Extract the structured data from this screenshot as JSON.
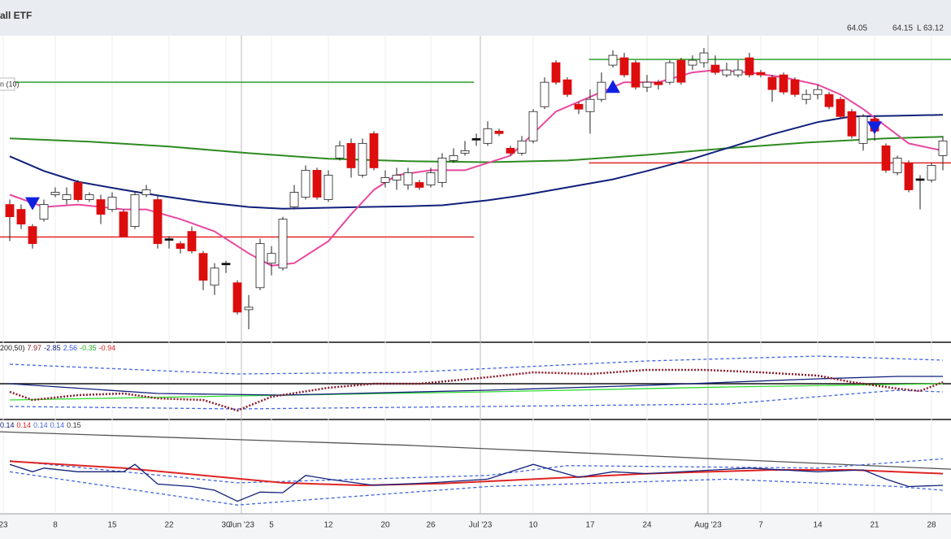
{
  "chart_data": {
    "type": "candlestick",
    "title": "all ETF",
    "quote": [
      "64.05",
      "64.15",
      "L 63.12"
    ],
    "legend_label": "n (10)",
    "ylim": [
      55,
      67.5
    ],
    "categories": [
      "23",
      null,
      null,
      null,
      "8",
      null,
      null,
      null,
      null,
      "15",
      null,
      null,
      null,
      null,
      "22",
      null,
      null,
      null,
      null,
      "30",
      "Jun '23",
      null,
      null,
      "5",
      null,
      null,
      null,
      null,
      "12",
      null,
      null,
      null,
      null,
      "20",
      null,
      null,
      null,
      "26",
      null,
      null,
      null,
      "Jul '23",
      null,
      null,
      null,
      null,
      "10",
      null,
      null,
      null,
      null,
      "17",
      null,
      null,
      null,
      null,
      "24",
      null,
      null,
      null,
      null,
      "Aug '23",
      null,
      null,
      null,
      null,
      "7",
      null,
      null,
      null,
      null,
      "14",
      null,
      null,
      null,
      null,
      "21",
      null,
      null,
      null,
      null,
      "28",
      null
    ],
    "open": [
      60.6,
      60.4,
      59.7,
      60.0,
      61.0,
      60.8,
      61.5,
      60.8,
      60.8,
      60.4,
      60.3,
      59.7,
      61.0,
      60.8,
      59.2,
      59.0,
      59.5,
      58.6,
      57.3,
      58.2,
      57.4,
      56.3,
      57.2,
      58.2,
      58.0,
      60.5,
      60.9,
      62.0,
      60.8,
      62.5,
      63.1,
      61.8,
      63.5,
      61.5,
      61.6,
      61.4,
      61.5,
      61.4,
      61.5,
      62.4,
      62.7,
      63.3,
      63.1,
      63.6,
      62.9,
      62.7,
      63.2,
      64.6,
      66.4,
      65.7,
      64.7,
      64.4,
      64.9,
      66.3,
      66.6,
      66.4,
      65.4,
      65.6,
      65.6,
      66.5,
      66.3,
      66.4,
      66.3,
      65.9,
      65.9,
      66.6,
      66.0,
      65.8,
      65.9,
      65.7,
      64.9,
      65.1,
      65.1,
      64.9,
      64.4,
      63.1,
      64.1,
      63.0,
      61.9,
      62.3,
      61.65,
      61.6,
      62.6
    ],
    "high": [
      60.8,
      60.6,
      59.8,
      60.8,
      61.3,
      61.3,
      61.6,
      61.1,
      61.0,
      61.1,
      60.4,
      61.1,
      61.4,
      61.0,
      59.3,
      59.1,
      59.7,
      58.7,
      58.2,
      58.3,
      57.5,
      56.9,
      59.2,
      58.9,
      60.1,
      61.4,
      62.2,
      62.1,
      62.0,
      63.2,
      63.3,
      63.3,
      63.6,
      62.0,
      62.1,
      62.1,
      61.6,
      62.1,
      62.7,
      62.9,
      63.2,
      63.5,
      64.0,
      63.7,
      63.0,
      63.4,
      64.5,
      65.8,
      66.5,
      65.8,
      64.8,
      65.3,
      66.0,
      66.9,
      66.8,
      66.5,
      65.9,
      65.7,
      66.5,
      66.6,
      66.7,
      67.0,
      66.7,
      66.4,
      66.5,
      66.8,
      66.1,
      65.9,
      66.0,
      65.8,
      65.3,
      65.5,
      65.2,
      65.0,
      64.5,
      64.3,
      64.2,
      63.1,
      62.6,
      62.4,
      61.8,
      62.3,
      63.4
    ],
    "low": [
      59.1,
      59.6,
      58.8,
      59.9,
      60.9,
      60.6,
      60.7,
      60.7,
      59.8,
      60.3,
      59.3,
      59.6,
      60.9,
      58.8,
      58.8,
      58.6,
      58.6,
      57.1,
      56.9,
      57.8,
      56.1,
      55.5,
      57.1,
      57.7,
      57.9,
      60.4,
      60.8,
      60.8,
      60.7,
      62.4,
      61.7,
      61.7,
      62.0,
      61.3,
      61.2,
      61.2,
      61.2,
      61.3,
      61.3,
      62.3,
      62.6,
      63.0,
      63.0,
      63.4,
      62.6,
      62.6,
      63.1,
      64.5,
      65.5,
      65.0,
      64.3,
      63.5,
      64.8,
      66.2,
      65.8,
      65.3,
      65.2,
      65.3,
      65.5,
      65.5,
      66.1,
      66.2,
      65.9,
      65.8,
      65.8,
      65.8,
      65.8,
      64.8,
      65.1,
      65.0,
      64.7,
      64.9,
      64.5,
      64.1,
      63.3,
      62.8,
      63.2,
      61.9,
      61.8,
      61.1,
      60.4,
      61.5,
      62.0
    ],
    "close": [
      60.1,
      59.8,
      59.0,
      60.6,
      61.1,
      61.0,
      60.8,
      61.0,
      60.2,
      60.9,
      59.3,
      61.0,
      61.2,
      59.0,
      59.15,
      58.8,
      58.7,
      57.5,
      58.0,
      58.15,
      56.2,
      56.4,
      59.0,
      58.6,
      60.0,
      61.1,
      62.0,
      60.9,
      61.8,
      63.0,
      62.1,
      63.1,
      62.1,
      61.7,
      61.8,
      61.9,
      61.3,
      61.9,
      62.5,
      62.6,
      62.8,
      63.25,
      63.7,
      63.5,
      62.7,
      63.2,
      64.4,
      65.6,
      65.6,
      65.1,
      64.5,
      64.9,
      65.6,
      66.7,
      65.9,
      65.4,
      65.6,
      65.5,
      66.4,
      65.6,
      66.5,
      66.8,
      66.0,
      66.1,
      66.1,
      65.9,
      65.9,
      65.3,
      65.2,
      65.1,
      65.1,
      65.3,
      64.6,
      64.2,
      63.4,
      64.2,
      63.6,
      62.0,
      62.5,
      61.2,
      61.6,
      62.2,
      63.2
    ],
    "up_color": "#ffffff",
    "down_color": "#dd0d0d",
    "doji_color": "#000000",
    "lines": [
      {
        "color": "#2e8b22",
        "x": [
          0,
          7,
          14,
          21,
          28,
          35,
          42,
          49,
          56,
          63,
          70,
          77,
          82
        ],
        "values": [
          63.3,
          63.17,
          62.97,
          62.7,
          62.47,
          62.37,
          62.33,
          62.4,
          62.63,
          62.9,
          63.13,
          63.3,
          63.37
        ]
      },
      {
        "color": "#10207a",
        "x": [
          0,
          3,
          6,
          10,
          13,
          17,
          21,
          24,
          28,
          31,
          35,
          38,
          42,
          45,
          49,
          53,
          56,
          60,
          63,
          67,
          71,
          74,
          78,
          82
        ],
        "values": [
          62.57,
          61.97,
          61.53,
          61.2,
          60.97,
          60.7,
          60.5,
          60.43,
          60.47,
          60.5,
          60.53,
          60.57,
          60.77,
          60.97,
          61.3,
          61.63,
          61.97,
          62.47,
          62.9,
          63.47,
          63.97,
          64.2,
          64.23,
          64.27
        ]
      },
      {
        "color": "#e8489e",
        "x": [
          0,
          3,
          6,
          10,
          12,
          15,
          18,
          21,
          23,
          25,
          28,
          30,
          32,
          34,
          37,
          40,
          42,
          44,
          46,
          48,
          51,
          54,
          57,
          60,
          62,
          65,
          68,
          71,
          73,
          75,
          77,
          79,
          82
        ],
        "values": [
          61.0,
          60.5,
          60.6,
          60.4,
          60.4,
          60.0,
          59.5,
          58.6,
          58.1,
          58.2,
          59.1,
          60.2,
          61.2,
          61.8,
          62.0,
          62.0,
          62.3,
          62.6,
          63.5,
          64.4,
          65.0,
          65.6,
          65.6,
          66.0,
          66.1,
          66.0,
          65.8,
          65.5,
          65.1,
          64.5,
          63.8,
          63.1,
          62.8
        ]
      }
    ],
    "levels": [
      {
        "color": "#2ea02e",
        "x": [
          -0.9,
          40.8
        ],
        "value": 65.6
      },
      {
        "color": "#e02424",
        "x": [
          -0.9,
          40.8
        ],
        "value": 59.27
      },
      {
        "color": "#2ea02e",
        "x": [
          50.9,
          83
        ],
        "value": 66.53
      },
      {
        "color": "#e02424",
        "x": [
          50.9,
          83
        ],
        "value": 62.3
      }
    ],
    "signals": [
      {
        "x": 2,
        "value": 60.63,
        "direction": "down",
        "color": "#1020e0"
      },
      {
        "x": 53,
        "value": 65.43,
        "direction": "up",
        "color": "#1020e0"
      },
      {
        "x": 76,
        "value": 63.73,
        "direction": "down",
        "color": "#1020e0"
      }
    ],
    "panels": [
      {
        "label": [
          {
            "text": "200,50)",
            "color": "#222222"
          },
          {
            "text": "7.97",
            "color": "#8b1a2a"
          },
          {
            "text": "-2.85",
            "color": "#10207a"
          },
          {
            "text": "2.56",
            "color": "#3355dd"
          },
          {
            "text": "-0.35",
            "color": "#22aa22"
          },
          {
            "text": "-0.94",
            "color": "#dd2222"
          }
        ],
        "ylim": [
          -20,
          20
        ],
        "hline": 0,
        "lines": [
          {
            "color": "#4466dd",
            "style": "dashed",
            "x": [
              0,
              20,
              35,
              56,
              71,
              82
            ],
            "values": [
              12,
              6,
              7,
              14,
              17,
              14.5
            ]
          },
          {
            "color": "#4466dd",
            "style": "dashed",
            "x": [
              0,
              20,
              42,
              63,
              78,
              82
            ],
            "values": [
              -14,
              -15.5,
              -14,
              -12.5,
              -4,
              -5
            ]
          },
          {
            "color": "#33dd33",
            "style": "solid",
            "x": [
              0,
              20,
              42,
              63,
              82
            ],
            "values": [
              -10,
              -7.5,
              -5,
              -2,
              0
            ]
          },
          {
            "color": "#10207a",
            "style": "solid",
            "x": [
              0,
              13,
              24,
              42,
              56,
              71,
              78,
              82
            ],
            "values": [
              0,
              -6,
              -7,
              -4,
              -1,
              3,
              4.5,
              4.5
            ]
          },
          {
            "color": "#8b1a2a",
            "style": "dotted",
            "x": [
              0,
              2,
              6,
              10,
              13,
              17,
              20,
              23,
              28,
              32,
              36,
              42,
              46,
              51,
              56,
              61,
              66,
              71,
              74,
              78,
              80,
              82
            ],
            "values": [
              -5,
              -10,
              -7,
              -6,
              -9,
              -10,
              -16.5,
              -8,
              -2.5,
              0,
              0,
              4,
              7,
              6,
              8.5,
              8.5,
              7,
              5,
              1,
              -3,
              -4.5,
              1
            ]
          }
        ]
      },
      {
        "label": [
          {
            "text": "0.14",
            "color": "#10207a"
          },
          {
            "text": "0.14",
            "color": "#dd2222"
          },
          {
            "text": "0.14",
            "color": "#4466dd"
          },
          {
            "text": "0.14",
            "color": "#4466dd"
          },
          {
            "text": "0.15",
            "color": "#333333"
          }
        ],
        "ylim": [
          0.08,
          0.22
        ],
        "lines": [
          {
            "color": "#555555",
            "style": "solid",
            "x": [
              -0.9,
              35,
              83
            ],
            "values": [
              0.208,
              0.186,
              0.147
            ]
          },
          {
            "color": "#4466dd",
            "style": "dashed",
            "x": [
              0,
              20,
              42,
              49,
              71,
              82
            ],
            "values": [
              0.161,
              0.125,
              0.137,
              0.153,
              0.149,
              0.164
            ]
          },
          {
            "color": "#4466dd",
            "style": "dashed",
            "x": [
              0,
              20,
              42,
              63,
              78,
              82
            ],
            "values": [
              0.143,
              0.089,
              0.119,
              0.131,
              0.119,
              0.113
            ]
          },
          {
            "color": "#e02424",
            "style": "thick",
            "x": [
              0,
              10,
              17,
              24,
              31,
              38,
              46,
              56,
              67,
              74,
              82
            ],
            "values": [
              0.16,
              0.149,
              0.137,
              0.125,
              0.121,
              0.124,
              0.131,
              0.14,
              0.146,
              0.146,
              0.14
            ]
          },
          {
            "color": "#10207a",
            "style": "solid",
            "x": [
              0,
              2,
              3,
              6,
              10,
              11,
              13,
              16,
              18,
              20,
              22,
              24,
              26,
              28,
              32,
              37,
              42,
              46,
              50,
              53,
              56,
              62,
              65,
              71,
              75,
              77,
              79,
              82
            ],
            "values": [
              0.155,
              0.143,
              0.149,
              0.143,
              0.143,
              0.155,
              0.123,
              0.119,
              0.113,
              0.095,
              0.11,
              0.109,
              0.137,
              0.131,
              0.121,
              0.125,
              0.131,
              0.155,
              0.134,
              0.143,
              0.14,
              0.146,
              0.149,
              0.143,
              0.146,
              0.131,
              0.119,
              0.121
            ]
          }
        ]
      }
    ]
  }
}
